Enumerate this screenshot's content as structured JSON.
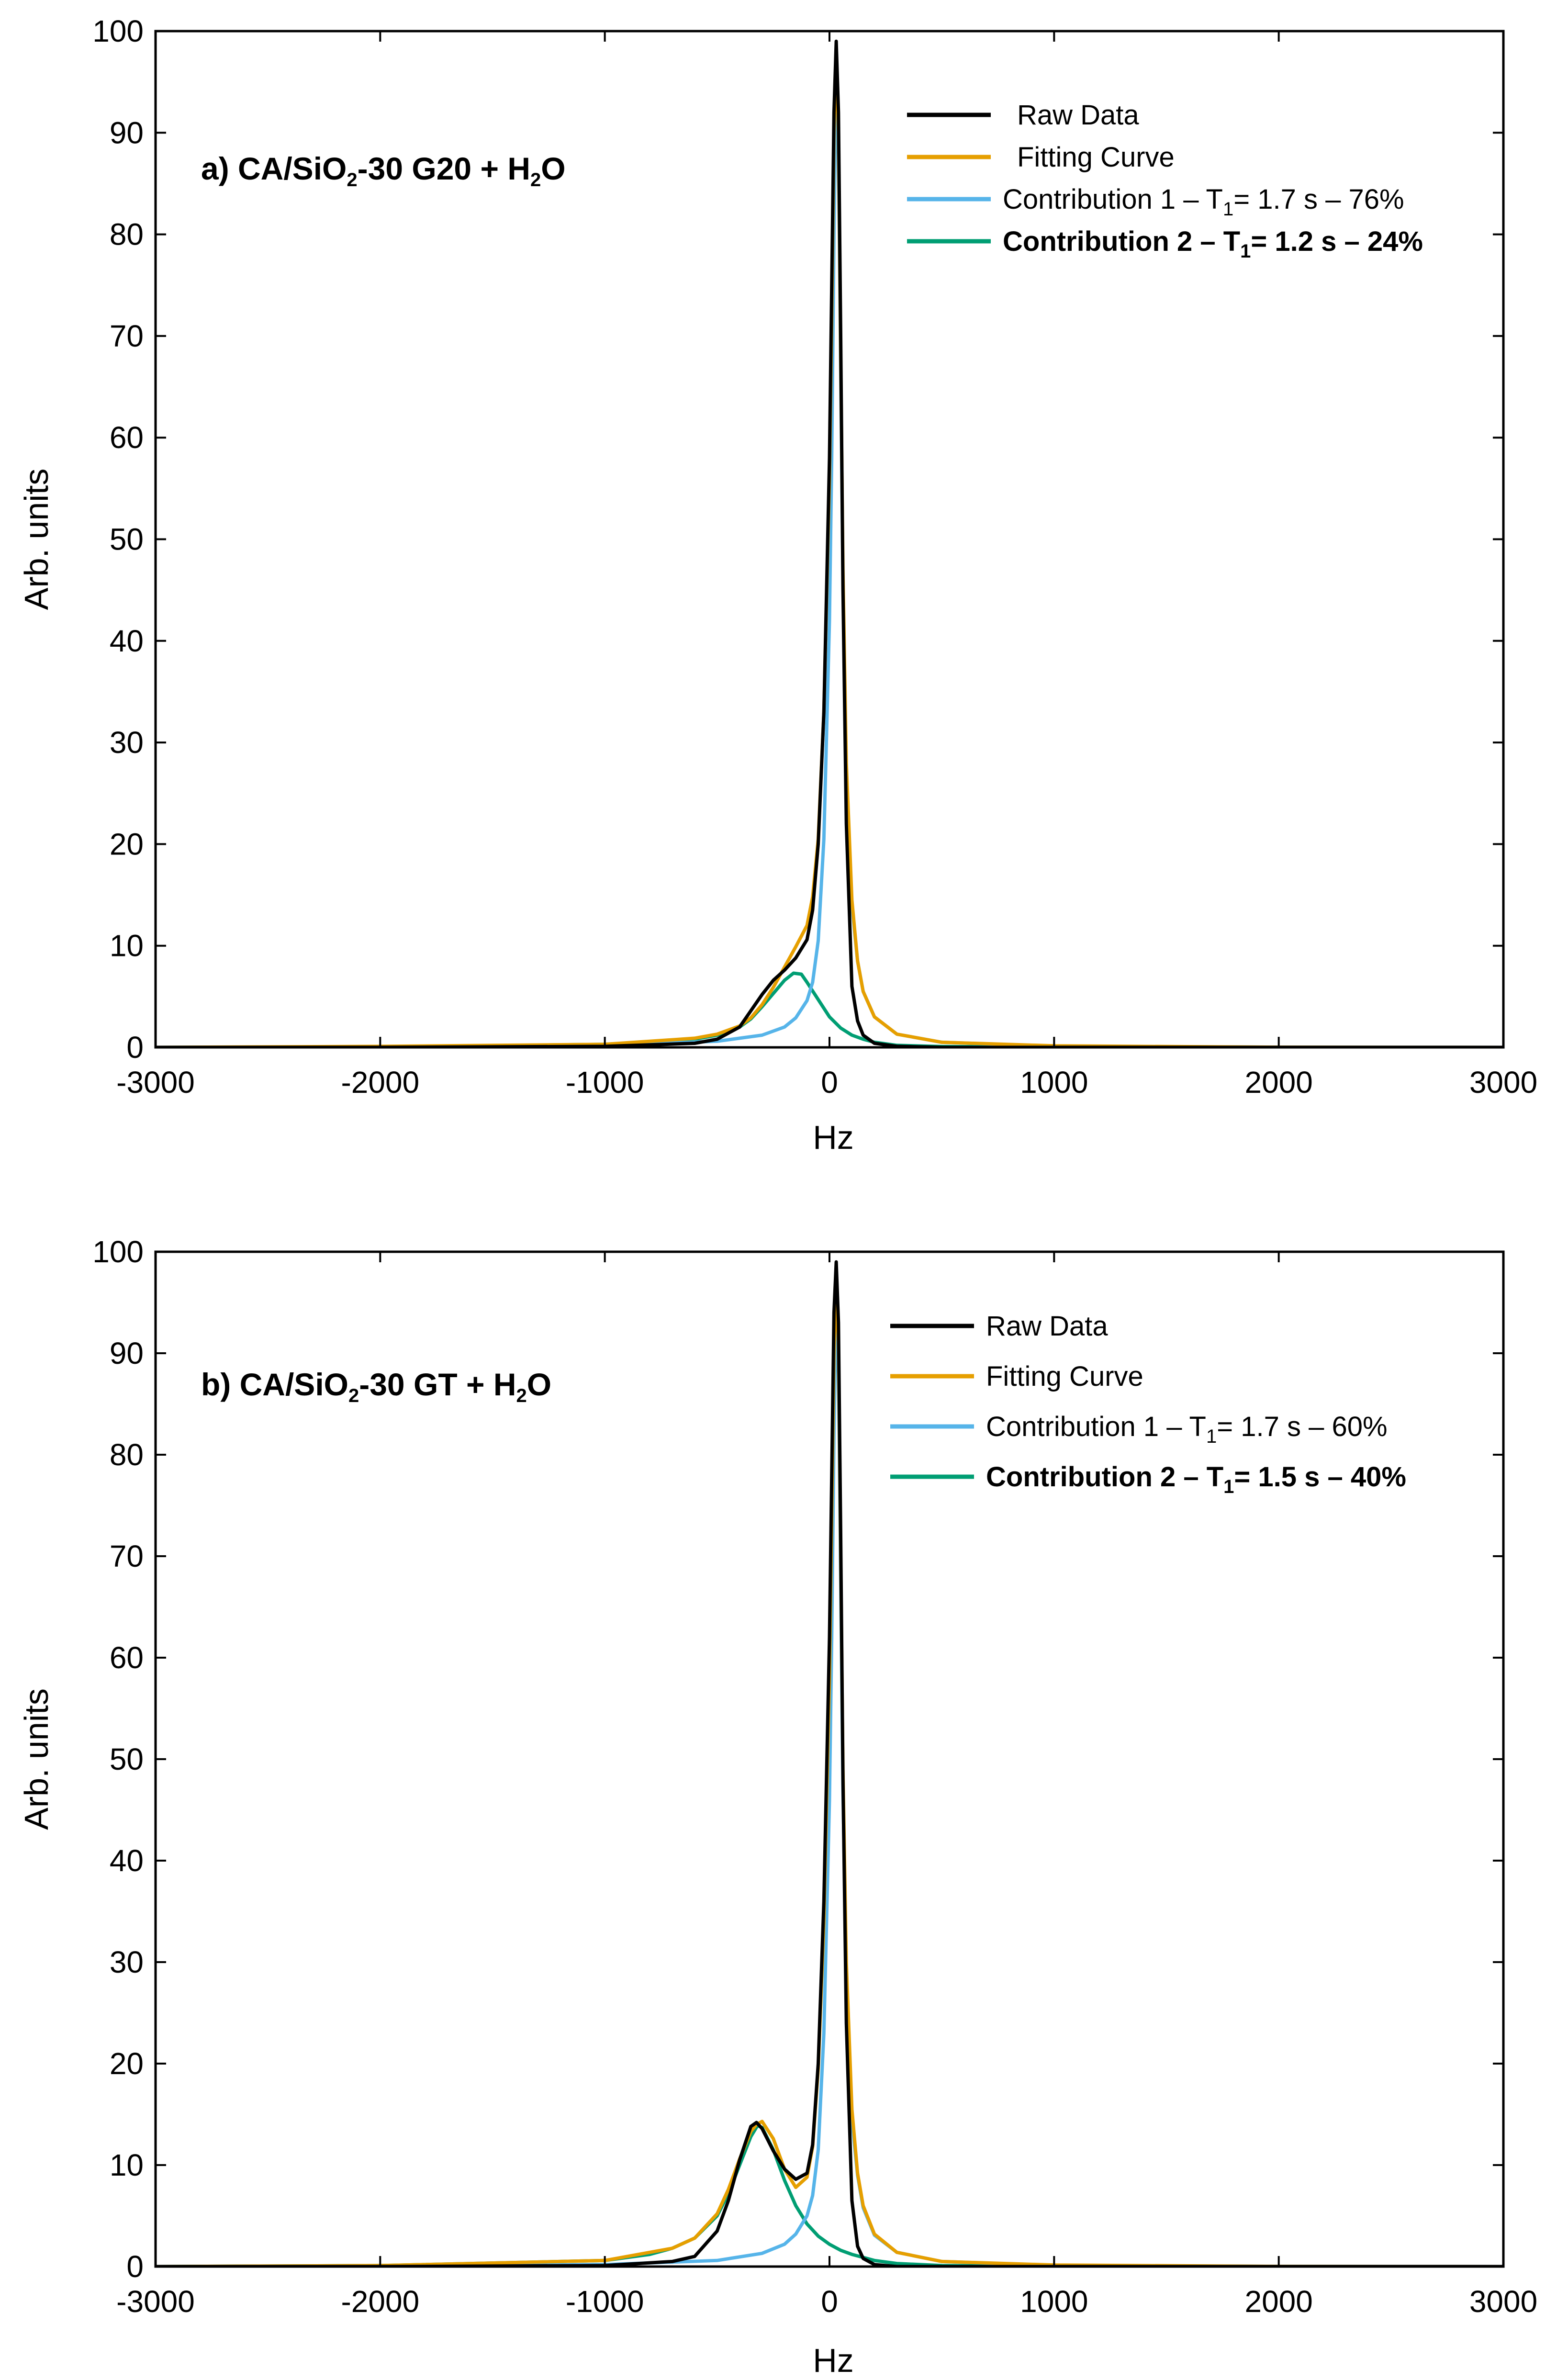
{
  "chart_data": [
    {
      "type": "line",
      "title": "a) CA/SiO₂-30 G20 + H₂O",
      "title_parts": [
        "a) CA/SiO",
        "2",
        "-30 G20 + H",
        "2",
        "O"
      ],
      "xlabel": "Hz",
      "ylabel": "Arb. units",
      "xlim": [
        -3000,
        3000
      ],
      "ylim": [
        0,
        100
      ],
      "x_ticks": [
        -3000,
        -2000,
        -1000,
        0,
        1000,
        2000,
        3000
      ],
      "y_ticks": [
        0,
        10,
        20,
        30,
        40,
        50,
        60,
        70,
        80,
        90,
        100
      ],
      "legend_position": "top-right",
      "series": [
        {
          "name": "Raw Data",
          "color": "#000000",
          "x": [
            -3000,
            -2000,
            -1000,
            -600,
            -500,
            -400,
            -350,
            -300,
            -250,
            -200,
            -150,
            -100,
            -75,
            -50,
            -25,
            0,
            10,
            20,
            30,
            40,
            50,
            60,
            75,
            100,
            125,
            150,
            200,
            300,
            500,
            1000,
            2000,
            3000
          ],
          "y": [
            0,
            0,
            0.1,
            0.4,
            0.8,
            2.0,
            3.6,
            5.2,
            6.6,
            7.6,
            8.8,
            10.6,
            13.5,
            20.0,
            33.0,
            58.0,
            75.0,
            92.0,
            99.0,
            92.0,
            70.0,
            45.0,
            22.0,
            6.0,
            2.6,
            1.2,
            0.4,
            0.1,
            0,
            0,
            0,
            0
          ]
        },
        {
          "name": "Fitting Curve",
          "color": "#E69F00",
          "x": [
            -3000,
            -2000,
            -1000,
            -600,
            -500,
            -400,
            -350,
            -300,
            -250,
            -200,
            -150,
            -100,
            -75,
            -50,
            -25,
            0,
            10,
            20,
            30,
            40,
            50,
            60,
            75,
            100,
            125,
            150,
            200,
            300,
            500,
            1000,
            2000,
            3000
          ],
          "y": [
            0,
            0.1,
            0.3,
            0.9,
            1.3,
            2.1,
            2.9,
            4.2,
            5.9,
            7.9,
            9.9,
            12.0,
            14.8,
            20.5,
            33.0,
            56.0,
            72.0,
            90.0,
            98.0,
            90.0,
            68.0,
            47.0,
            28.0,
            14.5,
            8.5,
            5.5,
            3.0,
            1.3,
            0.5,
            0.15,
            0.02,
            0
          ]
        },
        {
          "name": "Contribution 1 – T₁= 1.7 s – 76%",
          "legend_parts": [
            "Contribution 1 – T",
            "1",
            "= 1.7 s – 76%"
          ],
          "color": "#56B4E9",
          "x": [
            -3000,
            -2000,
            -1000,
            -500,
            -300,
            -200,
            -150,
            -100,
            -75,
            -50,
            -25,
            0,
            10,
            20,
            30,
            40,
            50,
            60,
            75,
            100,
            125,
            150,
            200,
            300,
            500,
            1000,
            2000,
            3000
          ],
          "y": [
            0,
            0,
            0.2,
            0.6,
            1.2,
            2.0,
            2.9,
            4.6,
            6.4,
            10.5,
            20.5,
            42.0,
            58.0,
            80.0,
            96.0,
            88.0,
            66.0,
            46.0,
            27.0,
            14.0,
            8.5,
            5.5,
            3.0,
            1.3,
            0.5,
            0.12,
            0.02,
            0
          ]
        },
        {
          "name": "Contribution 2 – T₁= 1.2 s – 24%",
          "legend_parts": [
            "Contribution 2 – T",
            "1",
            "= 1.2 s – 24%"
          ],
          "color": "#009E73",
          "x": [
            -3000,
            -2000,
            -1000,
            -600,
            -500,
            -400,
            -350,
            -300,
            -250,
            -200,
            -160,
            -125,
            -100,
            -50,
            0,
            50,
            100,
            150,
            200,
            300,
            500,
            1000,
            2000,
            3000
          ],
          "y": [
            0,
            0.05,
            0.3,
            0.8,
            1.2,
            2.0,
            2.8,
            4.0,
            5.3,
            6.6,
            7.3,
            7.2,
            6.4,
            4.7,
            3.0,
            1.9,
            1.2,
            0.8,
            0.5,
            0.2,
            0.08,
            0.02,
            0,
            0
          ]
        }
      ]
    },
    {
      "type": "line",
      "title": "b) CA/SiO₂-30 GT + H₂O",
      "title_parts": [
        "b) CA/SiO",
        "2",
        "-30 GT + H",
        "2",
        "O"
      ],
      "xlabel": "Hz",
      "ylabel": "Arb. units",
      "xlim": [
        -3000,
        3000
      ],
      "ylim": [
        0,
        100
      ],
      "x_ticks": [
        -3000,
        -2000,
        -1000,
        0,
        1000,
        2000,
        3000
      ],
      "y_ticks": [
        0,
        10,
        20,
        30,
        40,
        50,
        60,
        70,
        80,
        90,
        100
      ],
      "legend_position": "top-right",
      "series": [
        {
          "name": "Raw Data",
          "color": "#000000",
          "x": [
            -3000,
            -2000,
            -1000,
            -700,
            -600,
            -500,
            -450,
            -400,
            -350,
            -325,
            -300,
            -250,
            -200,
            -150,
            -100,
            -75,
            -50,
            -25,
            0,
            10,
            20,
            30,
            40,
            50,
            60,
            75,
            100,
            125,
            150,
            200,
            300,
            500,
            1000,
            2000,
            3000
          ],
          "y": [
            0,
            0,
            0.1,
            0.5,
            1.0,
            3.5,
            6.5,
            10.5,
            13.8,
            14.2,
            13.6,
            11.4,
            9.6,
            8.6,
            9.2,
            12.0,
            20.0,
            36.0,
            62.0,
            78.0,
            94.0,
            99.0,
            93.0,
            72.0,
            48.0,
            24.0,
            6.5,
            2.0,
            0.8,
            0.2,
            0,
            0,
            0,
            0,
            0
          ]
        },
        {
          "name": "Fitting Curve",
          "color": "#E69F00",
          "x": [
            -3000,
            -2000,
            -1000,
            -700,
            -600,
            -500,
            -450,
            -400,
            -350,
            -325,
            -300,
            -250,
            -200,
            -150,
            -100,
            -75,
            -50,
            -25,
            0,
            10,
            20,
            30,
            40,
            50,
            60,
            75,
            100,
            125,
            150,
            200,
            300,
            500,
            1000,
            2000,
            3000
          ],
          "y": [
            0,
            0.1,
            0.6,
            1.8,
            2.8,
            5.2,
            7.6,
            10.6,
            13.3,
            14.0,
            14.3,
            12.6,
            9.6,
            7.8,
            8.8,
            11.8,
            19.5,
            34.0,
            58.0,
            74.0,
            90.0,
            97.0,
            91.0,
            70.0,
            49.0,
            30.0,
            15.5,
            9.2,
            6.0,
            3.2,
            1.4,
            0.5,
            0.15,
            0.02,
            0
          ]
        },
        {
          "name": "Contribution 1 – T₁= 1.7 s – 60%",
          "legend_parts": [
            "Contribution 1 – T",
            "1",
            "= 1.7 s – 60%"
          ],
          "color": "#56B4E9",
          "x": [
            -3000,
            -2000,
            -1000,
            -500,
            -300,
            -200,
            -150,
            -100,
            -75,
            -50,
            -25,
            0,
            10,
            20,
            30,
            40,
            50,
            60,
            75,
            100,
            125,
            150,
            200,
            300,
            500,
            1000,
            2000,
            3000
          ],
          "y": [
            0,
            0,
            0.2,
            0.6,
            1.3,
            2.2,
            3.2,
            5.0,
            7.0,
            11.5,
            23.0,
            46.0,
            62.0,
            82.0,
            95.0,
            88.0,
            67.0,
            47.0,
            28.0,
            14.5,
            9.0,
            5.8,
            3.1,
            1.4,
            0.5,
            0.12,
            0.02,
            0
          ]
        },
        {
          "name": "Contribution 2 – T₁= 1.5 s – 40%",
          "legend_parts": [
            "Contribution 2 – T",
            "1",
            "= 1.5 s – 40%"
          ],
          "color": "#009E73",
          "x": [
            -3000,
            -2000,
            -1000,
            -800,
            -700,
            -600,
            -500,
            -450,
            -400,
            -350,
            -320,
            -300,
            -250,
            -200,
            -150,
            -100,
            -50,
            0,
            50,
            100,
            150,
            200,
            300,
            500,
            1000,
            2000,
            3000
          ],
          "y": [
            0,
            0.1,
            0.6,
            1.2,
            1.8,
            2.8,
            5.0,
            7.2,
            10.0,
            12.8,
            13.9,
            13.7,
            11.5,
            8.5,
            6.0,
            4.2,
            3.0,
            2.2,
            1.6,
            1.2,
            0.9,
            0.6,
            0.3,
            0.1,
            0.03,
            0,
            0
          ]
        }
      ]
    }
  ]
}
